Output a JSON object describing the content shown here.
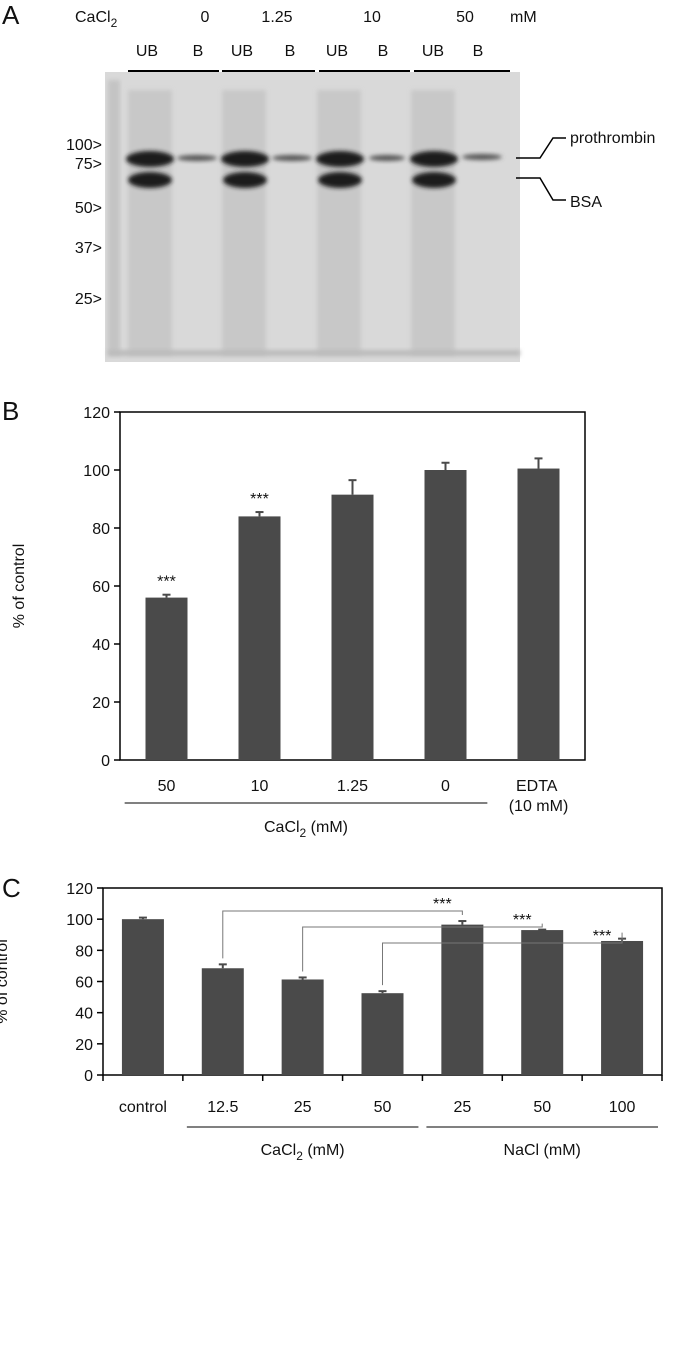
{
  "panel_labels": [
    "A",
    "B",
    "C"
  ],
  "gel": {
    "compound": {
      "base": "CaCl",
      "sub": "2"
    },
    "concentrations": [
      "0",
      "1.25",
      "10",
      "50"
    ],
    "unit": "mM",
    "lanes": [
      "UB",
      "B",
      "UB",
      "B",
      "UB",
      "B",
      "UB",
      "B"
    ],
    "markers": [
      "100>",
      "75>",
      "50>",
      "37>",
      "25>"
    ],
    "bands": [
      "prothrombin",
      "BSA"
    ]
  },
  "chart_data": [
    {
      "type": "bar",
      "categories": [
        "50",
        "10",
        "1.25",
        "0",
        "EDTA (10 mM)"
      ],
      "values": [
        56,
        84,
        91.5,
        100,
        100.5
      ],
      "errors": [
        1,
        1.5,
        5,
        2.5,
        3.5
      ],
      "annotations": [
        "***",
        "***",
        null,
        null,
        null
      ],
      "ylabel": "% of control",
      "ylim": [
        0,
        120
      ],
      "yticks": [
        0,
        20,
        40,
        60,
        80,
        100,
        120
      ],
      "color": "#4a4a4a",
      "groups": [
        {
          "label": {
            "base": "CaCl",
            "sub": "2",
            "rest": " (mM)"
          },
          "span": [
            0,
            3
          ]
        }
      ]
    },
    {
      "type": "bar",
      "categories": [
        "control",
        "12.5",
        "25",
        "50",
        "25",
        "50",
        "100"
      ],
      "values": [
        100,
        68.5,
        61.3,
        52.5,
        96.5,
        93,
        86
      ],
      "errors": [
        1,
        2.5,
        1.3,
        1.3,
        2.3,
        0.3,
        1.5
      ],
      "ylabel": "% of control",
      "ylim": [
        0,
        120
      ],
      "yticks": [
        0,
        20,
        40,
        60,
        80,
        100,
        120
      ],
      "color": "#4a4a4a",
      "groups": [
        {
          "label": {
            "base": "CaCl",
            "sub": "2",
            "rest": " (mM)"
          },
          "span": [
            1,
            3
          ]
        },
        {
          "label": {
            "base": "NaCl (mM)"
          },
          "span": [
            4,
            6
          ]
        }
      ],
      "comparisons": [
        {
          "from": 1,
          "to": 4,
          "label": "***"
        },
        {
          "from": 2,
          "to": 5,
          "label": "***"
        },
        {
          "from": 3,
          "to": 6,
          "label": "***"
        }
      ]
    }
  ]
}
